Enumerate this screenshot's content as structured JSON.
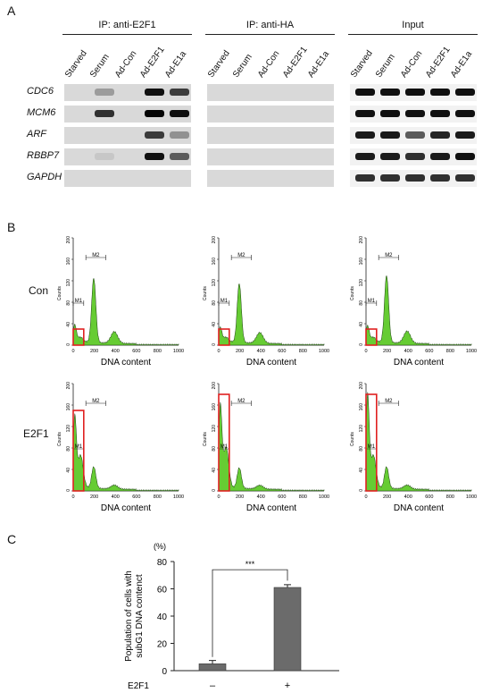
{
  "panelA": {
    "letter": "A",
    "groups": [
      "IP: anti-E2F1",
      "IP: anti-HA",
      "Input"
    ],
    "lanes": [
      "Starved",
      "Serum",
      "Ad-Con",
      "Ad-E2F1",
      "Ad-E1a"
    ],
    "genes": [
      "CDC6",
      "MCM6",
      "ARF",
      "RBBP7",
      "GAPDH"
    ],
    "band_intensity_ip_e2f1": [
      [
        0.0,
        0.3,
        0.0,
        0.95,
        0.75
      ],
      [
        0.0,
        0.8,
        0.0,
        1.0,
        0.95
      ],
      [
        0.0,
        0.0,
        0.0,
        0.75,
        0.35
      ],
      [
        0.0,
        0.1,
        0.0,
        0.95,
        0.6
      ],
      [
        0.0,
        0.0,
        0.0,
        0.0,
        0.0
      ]
    ],
    "band_intensity_input": [
      [
        0.95,
        0.95,
        0.95,
        0.95,
        0.95
      ],
      [
        0.95,
        0.95,
        0.95,
        0.95,
        0.95
      ],
      [
        0.9,
        0.9,
        0.6,
        0.85,
        0.9
      ],
      [
        0.9,
        0.9,
        0.8,
        0.9,
        0.95
      ],
      [
        0.8,
        0.8,
        0.8,
        0.8,
        0.8
      ]
    ]
  },
  "panelB": {
    "letter": "B",
    "rows": [
      "Con",
      "E2F1"
    ],
    "xlabel": "DNA content",
    "ylabel": "Counts",
    "xticks": [
      "0",
      "200",
      "400",
      "600",
      "800",
      "1000"
    ],
    "yticks": [
      "0",
      "40",
      "80",
      "120",
      "160",
      "200"
    ],
    "gates": [
      "M1",
      "M2"
    ],
    "fill_color": "#66cc33",
    "gate_color": "#e02020"
  },
  "panelC": {
    "letter": "C",
    "unit": "(%)",
    "ylabel_line1": "Population of cells with",
    "ylabel_line2": "subG1 DNA contenct",
    "significance": "***",
    "xgroup_label": "E2F1",
    "chart_data": {
      "type": "bar",
      "categories": [
        "–",
        "+"
      ],
      "values": [
        5,
        61
      ],
      "errors": [
        2.5,
        2
      ],
      "ylim": [
        0,
        80
      ],
      "yticks": [
        0,
        20,
        40,
        60,
        80
      ],
      "bar_color": "#6b6b6b"
    }
  }
}
